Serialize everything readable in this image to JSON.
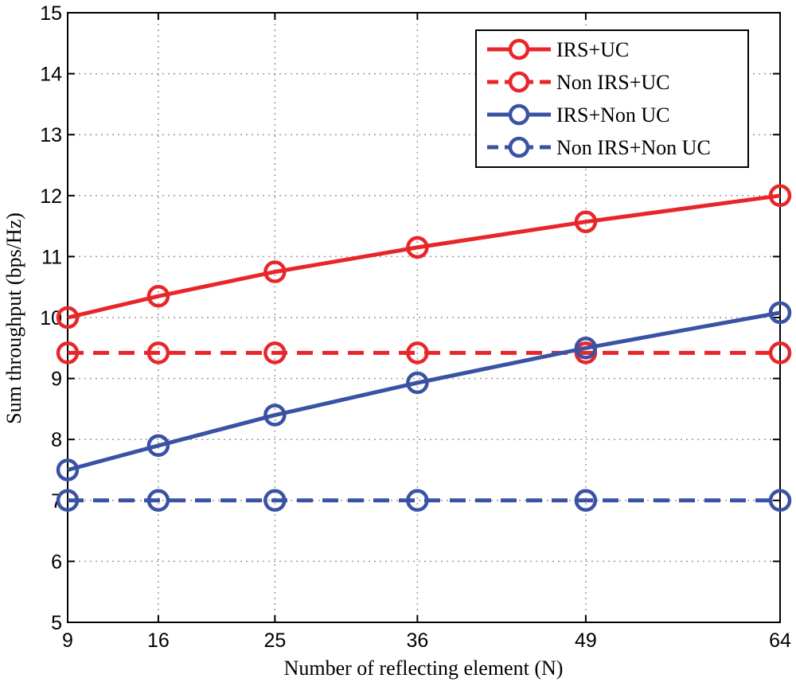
{
  "chart_data": {
    "type": "line",
    "title": "",
    "xlabel": "Number of reflecting element (N)",
    "ylabel": "Sum throughput (bps/Hz)",
    "xlim": [
      9,
      64
    ],
    "ylim": [
      5,
      15
    ],
    "xticks": [
      9,
      16,
      25,
      36,
      49,
      64
    ],
    "yticks": [
      5,
      6,
      7,
      8,
      9,
      10,
      11,
      12,
      13,
      14,
      15
    ],
    "grid": true,
    "legend_position": "top-right",
    "x": [
      9,
      16,
      25,
      36,
      49,
      64
    ],
    "series": [
      {
        "name": "IRS+UC",
        "values": [
          10.0,
          10.35,
          10.75,
          11.15,
          11.57,
          12.0
        ],
        "color": "#e8262a",
        "dash": "solid"
      },
      {
        "name": "Non IRS+UC",
        "values": [
          9.42,
          9.42,
          9.42,
          9.42,
          9.42,
          9.42
        ],
        "color": "#e8262a",
        "dash": "dashed"
      },
      {
        "name": "IRS+Non UC",
        "values": [
          7.5,
          7.9,
          8.4,
          8.93,
          9.5,
          10.08
        ],
        "color": "#3a52a4",
        "dash": "solid"
      },
      {
        "name": "Non IRS+Non UC",
        "values": [
          7.0,
          7.0,
          7.0,
          7.0,
          7.0,
          7.0
        ],
        "color": "#3a52a4",
        "dash": "dashed"
      }
    ]
  }
}
